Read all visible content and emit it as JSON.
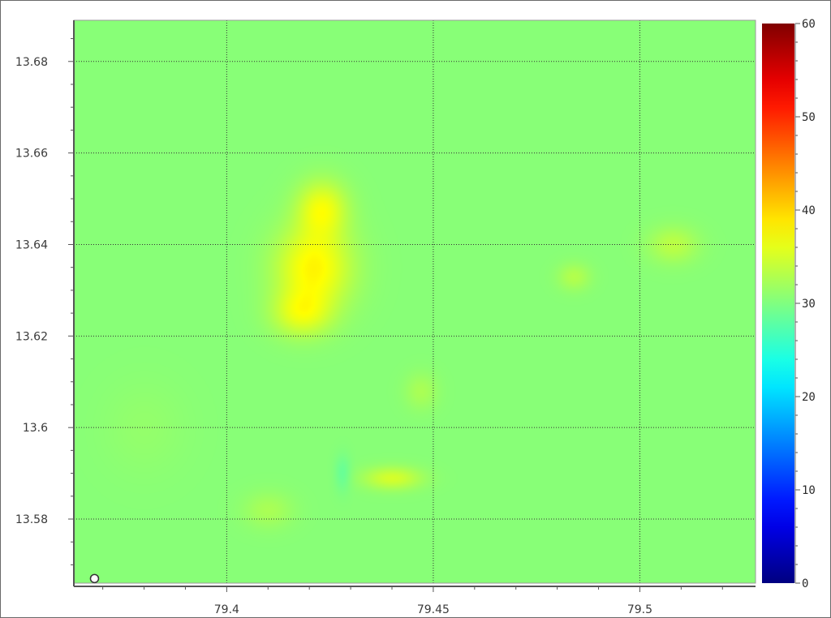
{
  "chart_data": {
    "type": "heatmap",
    "title": "",
    "xlabel": "",
    "ylabel": "",
    "xlim": [
      79.363,
      79.528
    ],
    "ylim": [
      13.566,
      13.689
    ],
    "grid": true,
    "x_ticks": [
      "79.4",
      "79.45",
      "79.5"
    ],
    "x_tick_values": [
      79.4,
      79.45,
      79.5
    ],
    "y_ticks": [
      "13.68",
      "13.66",
      "13.64",
      "13.62",
      "13.6",
      "13.58"
    ],
    "y_tick_values": [
      13.68,
      13.66,
      13.64,
      13.62,
      13.6,
      13.58
    ],
    "colorbar": {
      "range": [
        0,
        60
      ],
      "ticks": [
        "0",
        "10",
        "20",
        "30",
        "40",
        "50",
        "60"
      ],
      "tick_values": [
        0,
        10,
        20,
        30,
        40,
        50,
        60
      ],
      "colormap": "jet"
    },
    "background_value": 30.5,
    "features": [
      {
        "x": 79.421,
        "y": 13.635,
        "sx": 0.009,
        "sy": 0.009,
        "value": 38
      },
      {
        "x": 79.423,
        "y": 13.648,
        "sx": 0.006,
        "sy": 0.006,
        "value": 36.5
      },
      {
        "x": 79.418,
        "y": 13.625,
        "sx": 0.007,
        "sy": 0.005,
        "value": 35.5
      },
      {
        "x": 79.44,
        "y": 13.589,
        "sx": 0.007,
        "sy": 0.0025,
        "value": 35
      },
      {
        "x": 79.508,
        "y": 13.64,
        "sx": 0.006,
        "sy": 0.004,
        "value": 33.5
      },
      {
        "x": 79.484,
        "y": 13.633,
        "sx": 0.004,
        "sy": 0.003,
        "value": 33
      },
      {
        "x": 79.447,
        "y": 13.608,
        "sx": 0.004,
        "sy": 0.004,
        "value": 32.5
      },
      {
        "x": 79.41,
        "y": 13.582,
        "sx": 0.006,
        "sy": 0.004,
        "value": 32.5
      },
      {
        "x": 79.428,
        "y": 13.59,
        "sx": 0.002,
        "sy": 0.004,
        "value": 28.5
      },
      {
        "x": 79.38,
        "y": 13.6,
        "sx": 0.01,
        "sy": 0.01,
        "value": 31.2
      }
    ],
    "marker": {
      "x": 79.368,
      "y": 13.567,
      "shape": "circle"
    }
  }
}
